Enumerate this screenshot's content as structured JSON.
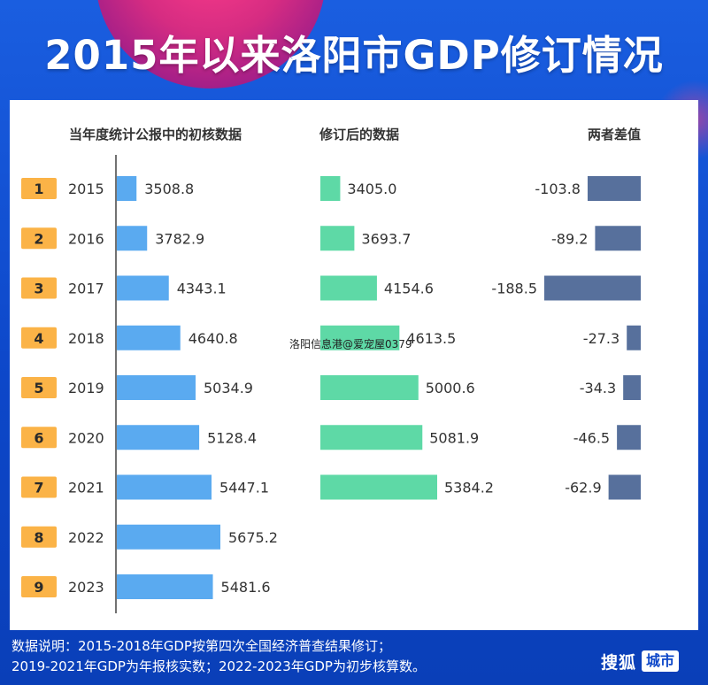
{
  "title": "2015年以来洛阳市GDP修订情况",
  "watermark": "洛阳信息港@爱宠屋0379",
  "footer": {
    "line1": "数据说明：2015-2018年GDP按第四次全国经济普查结果修订；",
    "line2": "2019-2021年GDP为年报核实数；2022-2023年GDP为初步核算数。"
  },
  "brand": {
    "name": "搜狐",
    "tag": "城市"
  },
  "colors": {
    "initial_bar": "#5aaaf0",
    "revised_bar": "#5ed9a6",
    "diff_bar": "#57709c",
    "rank_badge": "#fbb347",
    "rank_text": "#2a2a2a",
    "text": "#333333",
    "axis": "#444444"
  },
  "chart_data": {
    "type": "bar",
    "orientation": "horizontal",
    "ranks": [
      "1",
      "2",
      "3",
      "4",
      "5",
      "6",
      "7",
      "8",
      "9"
    ],
    "categories": [
      "2015",
      "2016",
      "2017",
      "2018",
      "2019",
      "2020",
      "2021",
      "2022",
      "2023"
    ],
    "series": [
      {
        "name": "当年度统计公报中的初核数据",
        "values": [
          3508.8,
          3782.9,
          4343.1,
          4640.8,
          5034.9,
          5128.4,
          5447.1,
          5675.2,
          5481.6
        ],
        "labels": [
          "3508.8",
          "3782.9",
          "4343.1",
          "4640.8",
          "5034.9",
          "5128.4",
          "5447.1",
          "5675.2",
          "5481.6"
        ]
      },
      {
        "name": "修订后的数据",
        "values": [
          3405.0,
          3693.7,
          4154.6,
          4613.5,
          5000.6,
          5081.9,
          5384.2,
          null,
          null
        ],
        "labels": [
          "3405.0",
          "3693.7",
          "4154.6",
          "4613.5",
          "5000.6",
          "5081.9",
          "5384.2",
          null,
          null
        ]
      },
      {
        "name": "两者差值",
        "values": [
          -103.8,
          -89.2,
          -188.5,
          -27.3,
          -34.3,
          -46.5,
          -62.9,
          null,
          null
        ],
        "labels": [
          "-103.8",
          "-89.2",
          "-188.5",
          "-27.3",
          "-34.3",
          "-46.5",
          "-62.9",
          null,
          null
        ]
      }
    ]
  }
}
